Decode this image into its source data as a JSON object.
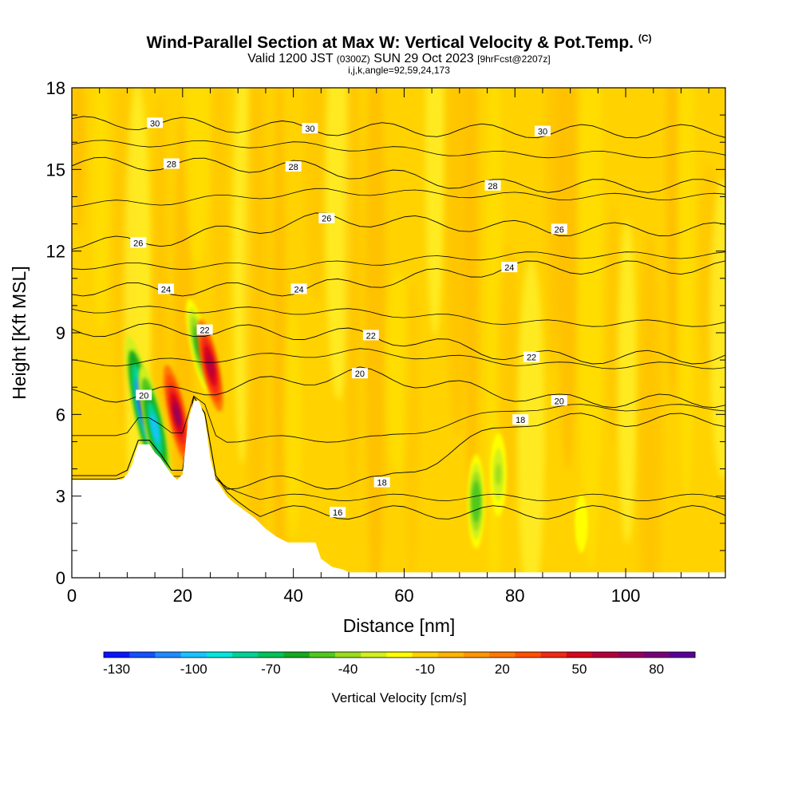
{
  "title": {
    "main": "Wind-Parallel Section at Max W: Vertical Velocity & Pot.Temp.",
    "mark": "(C)",
    "valid_prefix": "Valid 1200 JST",
    "valid_utc": "(0300Z)",
    "valid_date": "SUN 29 Oct 2023",
    "forecast": "[9hrFcst@2207z]",
    "params": "i,j,k,angle=92,59,24,173"
  },
  "chart_data": {
    "type": "heatmap",
    "xlabel": "Distance [nm]",
    "ylabel": "Height [Kft MSL]",
    "xlim": [
      0,
      118
    ],
    "ylim": [
      0,
      18
    ],
    "x_ticks": [
      0,
      20,
      40,
      60,
      80,
      100
    ],
    "y_ticks": [
      0,
      3,
      6,
      9,
      12,
      15,
      18
    ],
    "colorbar": {
      "label": "Vertical Velocity [cm/s]",
      "tick_labels": [
        "-130",
        "-100",
        "-70",
        "-40",
        "-10",
        "20",
        "50",
        "80"
      ],
      "colors": [
        "#0a14ff",
        "#1450ff",
        "#1e8cff",
        "#19c3ff",
        "#00e6dc",
        "#00d296",
        "#00c35a",
        "#14aa1e",
        "#50c81e",
        "#9bdc1e",
        "#d2f01e",
        "#ffff00",
        "#ffd200",
        "#ffb400",
        "#ff9600",
        "#ff7800",
        "#ff5000",
        "#f02814",
        "#d7051e",
        "#b4003c",
        "#96005a",
        "#780078",
        "#5a0096"
      ]
    },
    "terrain": [
      [
        0,
        3.6
      ],
      [
        9,
        3.6
      ],
      [
        10,
        3.8
      ],
      [
        11,
        4.2
      ],
      [
        11.5,
        4.6
      ],
      [
        12,
        4.9
      ],
      [
        14,
        4.9
      ],
      [
        15,
        4.6
      ],
      [
        16,
        4.4
      ],
      [
        17,
        4.1
      ],
      [
        18,
        3.8
      ],
      [
        19,
        3.6
      ],
      [
        20,
        3.8
      ],
      [
        21,
        5.8
      ],
      [
        22,
        6.5
      ],
      [
        23,
        6.5
      ],
      [
        24,
        5.9
      ],
      [
        25,
        4.4
      ],
      [
        26,
        3.6
      ],
      [
        27,
        3.3
      ],
      [
        28,
        3.0
      ],
      [
        29,
        2.8
      ],
      [
        31,
        2.5
      ],
      [
        33,
        2.2
      ],
      [
        35,
        1.8
      ],
      [
        37,
        1.5
      ],
      [
        39,
        1.3
      ],
      [
        44,
        1.3
      ],
      [
        45,
        0.7
      ],
      [
        47,
        0.4
      ],
      [
        49,
        0.3
      ],
      [
        50,
        0.2
      ],
      [
        118,
        0.2
      ]
    ],
    "velocity_cells": [
      {
        "x": 13,
        "y": 6.2,
        "value": -130
      },
      {
        "x": 15,
        "y": 5.5,
        "value": -100
      },
      {
        "x": 19,
        "y": 6.0,
        "value": 65
      },
      {
        "x": 23,
        "y": 8.5,
        "value": -60
      },
      {
        "x": 25,
        "y": 7.8,
        "value": 55
      },
      {
        "x": 73,
        "y": 2.8,
        "value": -55
      },
      {
        "x": 77,
        "y": 3.8,
        "value": -40
      },
      {
        "x": 92,
        "y": 2.0,
        "value": -25
      }
    ],
    "theta_contours": [
      {
        "level": 16,
        "labels": [
          [
            48,
            2.4
          ]
        ]
      },
      {
        "level": 18,
        "labels": [
          [
            56,
            3.5
          ],
          [
            81,
            5.8
          ]
        ]
      },
      {
        "level": 20,
        "labels": [
          [
            13,
            6.7
          ],
          [
            52,
            7.5
          ],
          [
            88,
            6.5
          ]
        ]
      },
      {
        "level": 22,
        "labels": [
          [
            24,
            9.1
          ],
          [
            54,
            8.9
          ],
          [
            83,
            8.1
          ]
        ]
      },
      {
        "level": 24,
        "labels": [
          [
            17,
            10.6
          ],
          [
            41,
            10.6
          ],
          [
            79,
            11.4
          ]
        ]
      },
      {
        "level": 26,
        "labels": [
          [
            12,
            12.3
          ],
          [
            46,
            13.2
          ],
          [
            88,
            12.8
          ]
        ]
      },
      {
        "level": 28,
        "labels": [
          [
            18,
            15.2
          ],
          [
            40,
            15.1
          ],
          [
            76,
            14.4
          ]
        ]
      },
      {
        "level": 30,
        "labels": [
          [
            15,
            16.7
          ],
          [
            43,
            16.5
          ],
          [
            85,
            16.4
          ]
        ]
      }
    ]
  }
}
